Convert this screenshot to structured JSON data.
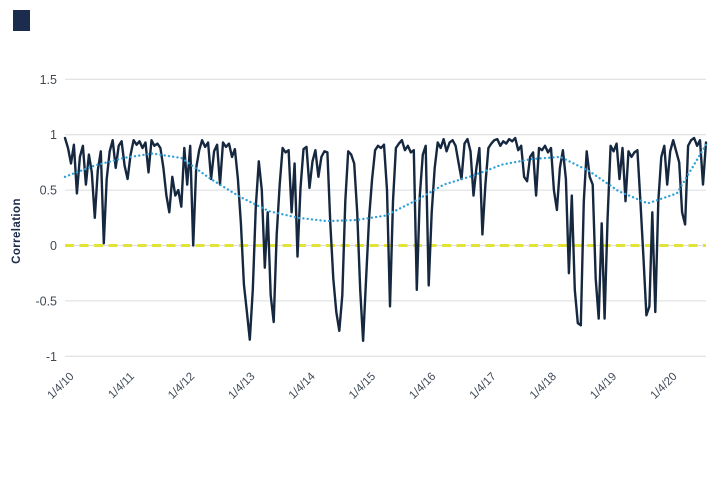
{
  "figure": {
    "logo_color": "#1b2c4e",
    "background": "#ffffff"
  },
  "chart_data": {
    "type": "line",
    "title": "",
    "xlabel": "",
    "ylabel": "Correlation",
    "ylim": [
      -1,
      1.5
    ],
    "grid": "horizontal",
    "legend": "none",
    "y_ticks": [
      1.5,
      1,
      0.5,
      0,
      -0.5,
      -1
    ],
    "y_tick_labels": [
      "1.5",
      "1",
      "0.5",
      "0",
      "-0.5",
      "-1"
    ],
    "x_tick_labels": [
      "1/4/10",
      "1/4/11",
      "1/4/12",
      "1/4/13",
      "1/4/14",
      "1/4/15",
      "1/4/16",
      "1/4/17",
      "1/4/18",
      "1/4/19",
      "1/4/20"
    ],
    "colors": {
      "gridline": "#d9dce0",
      "tick_label": "#404a57",
      "axis_title": "#1c2c4a"
    },
    "zero_line": {
      "name": "zero-reference-line",
      "y": 0,
      "color": "#e2e335",
      "style": "dashed"
    },
    "series": [
      {
        "name": "rolling-correlation",
        "color": "#16283f",
        "style": "solid",
        "values": [
          0.97,
          0.88,
          0.74,
          0.91,
          0.47,
          0.8,
          0.9,
          0.55,
          0.82,
          0.66,
          0.25,
          0.68,
          0.85,
          0.02,
          0.6,
          0.85,
          0.95,
          0.7,
          0.9,
          0.94,
          0.72,
          0.6,
          0.82,
          0.95,
          0.91,
          0.94,
          0.88,
          0.93,
          0.66,
          0.95,
          0.9,
          0.92,
          0.88,
          0.7,
          0.45,
          0.3,
          0.62,
          0.45,
          0.5,
          0.35,
          0.88,
          0.55,
          0.9,
          0.0,
          0.7,
          0.86,
          0.95,
          0.89,
          0.93,
          0.6,
          0.85,
          0.91,
          0.55,
          0.93,
          0.89,
          0.92,
          0.8,
          0.87,
          0.6,
          0.2,
          -0.35,
          -0.6,
          -0.85,
          -0.4,
          0.35,
          0.76,
          0.5,
          -0.2,
          0.3,
          -0.45,
          -0.69,
          0.1,
          0.55,
          0.88,
          0.84,
          0.86,
          0.3,
          0.74,
          -0.1,
          0.52,
          0.87,
          0.89,
          0.52,
          0.76,
          0.86,
          0.62,
          0.8,
          0.85,
          0.84,
          0.2,
          -0.3,
          -0.6,
          -0.77,
          -0.45,
          0.4,
          0.85,
          0.82,
          0.74,
          0.3,
          -0.4,
          -0.86,
          -0.3,
          0.25,
          0.6,
          0.86,
          0.9,
          0.88,
          0.91,
          0.5,
          -0.55,
          0.4,
          0.88,
          0.92,
          0.95,
          0.86,
          0.9,
          0.84,
          0.86,
          -0.4,
          0.45,
          0.82,
          0.9,
          -0.36,
          0.3,
          0.7,
          0.93,
          0.88,
          0.96,
          0.85,
          0.93,
          0.95,
          0.9,
          0.75,
          0.6,
          0.92,
          0.96,
          0.85,
          0.45,
          0.7,
          0.88,
          0.1,
          0.55,
          0.88,
          0.92,
          0.95,
          0.96,
          0.9,
          0.94,
          0.92,
          0.96,
          0.94,
          0.97,
          0.86,
          0.9,
          0.62,
          0.58,
          0.8,
          0.84,
          0.45,
          0.88,
          0.86,
          0.9,
          0.84,
          0.88,
          0.5,
          0.32,
          0.7,
          0.86,
          0.6,
          -0.25,
          0.45,
          -0.4,
          -0.7,
          -0.72,
          0.4,
          0.85,
          0.62,
          0.55,
          -0.3,
          -0.66,
          0.2,
          -0.66,
          0.25,
          0.9,
          0.85,
          0.92,
          0.6,
          0.88,
          0.4,
          0.85,
          0.8,
          0.84,
          0.86,
          0.4,
          -0.1,
          -0.63,
          -0.55,
          0.3,
          -0.6,
          0.4,
          0.8,
          0.9,
          0.55,
          0.85,
          0.95,
          0.85,
          0.75,
          0.3,
          0.19,
          0.9,
          0.95,
          0.97,
          0.9,
          0.95,
          0.55,
          0.93
        ]
      },
      {
        "name": "smoothed-trend",
        "color": "#2f9fd8",
        "style": "dotted",
        "values": [
          0.62,
          0.72,
          0.79,
          0.83,
          0.79,
          0.6,
          0.44,
          0.31,
          0.25,
          0.22,
          0.23,
          0.27,
          0.4,
          0.55,
          0.63,
          0.73,
          0.78,
          0.8,
          0.67,
          0.49,
          0.38,
          0.47,
          0.91
        ]
      }
    ]
  }
}
